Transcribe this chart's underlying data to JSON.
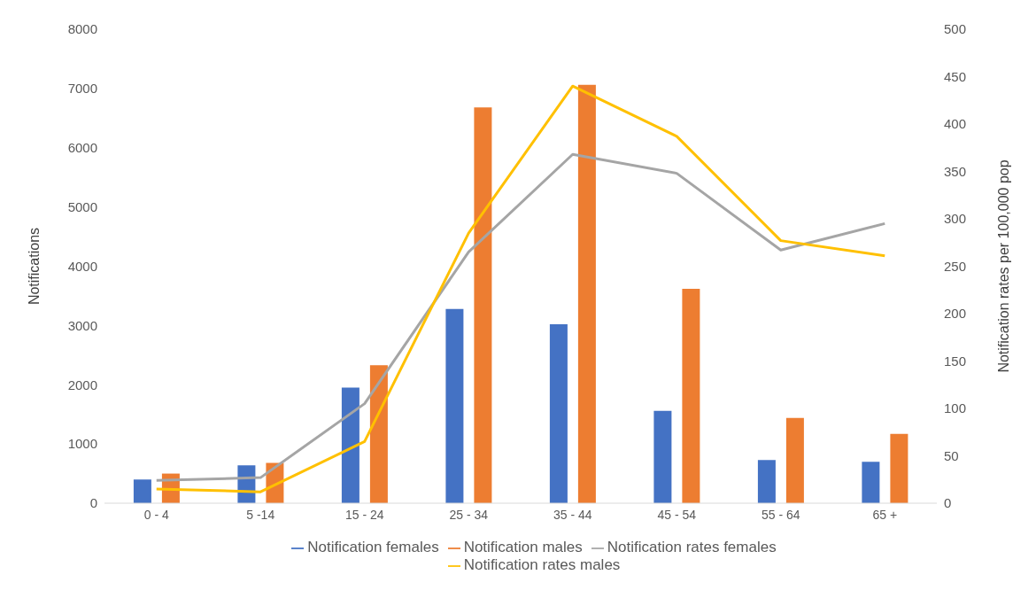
{
  "chart_data": {
    "type": "bar",
    "categories": [
      "0 - 4",
      "5 -14",
      "15 - 24",
      "25 - 34",
      "35 - 44",
      "45 - 54",
      "55 - 64",
      "65 +"
    ],
    "ylabel": "Notifications",
    "y2label": "Notification rates per 100,000 pop",
    "ylim": [
      0,
      8000
    ],
    "yticks": [
      0,
      1000,
      2000,
      3000,
      4000,
      5000,
      6000,
      7000,
      8000
    ],
    "y2lim": [
      0,
      500
    ],
    "y2ticks": [
      0,
      50,
      100,
      150,
      200,
      250,
      300,
      350,
      400,
      450,
      500
    ],
    "grid": false,
    "legend": "bottom",
    "marker": "none",
    "line_style": "solid",
    "series": [
      {
        "name": "Notification females",
        "color": "#4472c4",
        "values": [
          400,
          640,
          1950,
          3280,
          3020,
          1560,
          730,
          700
        ]
      },
      {
        "name": "Notification males",
        "color": "#ed7d31",
        "values": [
          500,
          680,
          2330,
          6680,
          7060,
          3620,
          1440,
          1170
        ]
      },
      {
        "name": "Notification rates females",
        "type": "line",
        "axis": "y2",
        "color": "#a5a5a5",
        "values": [
          24,
          27,
          105,
          265,
          368,
          348,
          267,
          295
        ]
      },
      {
        "name": "Notification rates males",
        "type": "line",
        "axis": "y2",
        "color": "#ffc000",
        "values": [
          15,
          12,
          65,
          285,
          440,
          387,
          277,
          261
        ]
      }
    ]
  }
}
